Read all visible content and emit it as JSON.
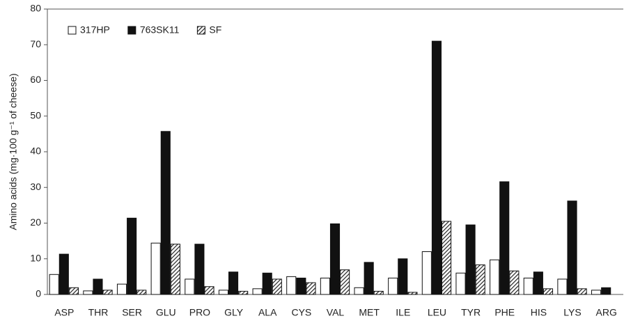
{
  "chart_data": {
    "type": "bar",
    "y_label": "Amino acids (mg·100 g⁻¹ of cheese)",
    "categories": [
      "ASP",
      "THR",
      "SER",
      "GLU",
      "PRO",
      "GLY",
      "ALA",
      "CYS",
      "VAL",
      "MET",
      "ILE",
      "LEU",
      "TYR",
      "PHE",
      "HIS",
      "LYS",
      "ARG"
    ],
    "series": [
      {
        "name": "317HP",
        "color": "#ffffff",
        "values": [
          5.6,
          1.0,
          2.9,
          14.4,
          4.3,
          1.2,
          1.6,
          5.0,
          4.6,
          1.9,
          4.6,
          12.0,
          6.0,
          9.7,
          4.6,
          4.3,
          1.2
        ]
      },
      {
        "name": "763SK11",
        "color": "#111111",
        "values": [
          11.3,
          4.3,
          21.4,
          45.7,
          14.1,
          6.3,
          6.0,
          4.6,
          19.8,
          9.0,
          10.0,
          71.0,
          19.5,
          31.6,
          6.3,
          26.2,
          1.9
        ]
      },
      {
        "name": "SF",
        "color": "#222222",
        "fill": "hatch",
        "values": [
          1.9,
          1.2,
          1.2,
          14.1,
          2.2,
          0.9,
          4.3,
          3.3,
          6.9,
          0.9,
          0.6,
          20.5,
          8.3,
          6.6,
          1.6,
          1.6,
          null
        ]
      }
    ],
    "ylim": [
      0,
      80
    ],
    "yticks": [
      0,
      10,
      20,
      30,
      40,
      50,
      60,
      70,
      80
    ],
    "legend": "upper left"
  }
}
